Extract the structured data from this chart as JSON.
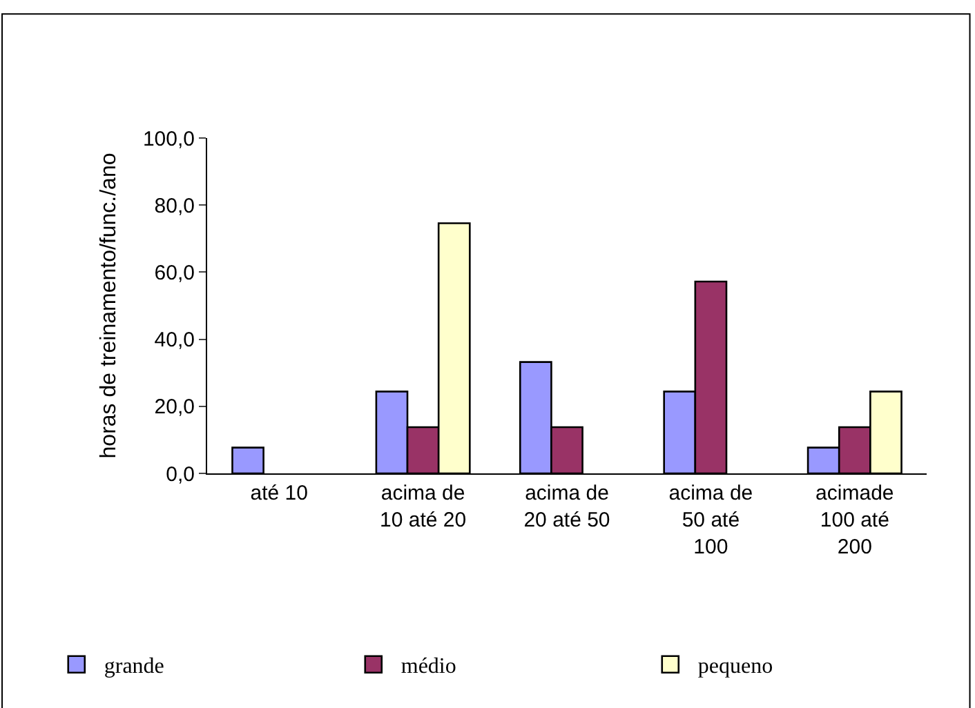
{
  "chart_data": {
    "type": "bar",
    "ylabel": "horas de treinamento/func./ano",
    "categories": [
      "até 10",
      "acima de\n10 até 20",
      "acima de\n20 até 50",
      "acima de\n50 até\n100",
      "acimade\n100 até\n200"
    ],
    "series": [
      {
        "name": "grande",
        "color": "#9999ff",
        "values": [
          7.7,
          24.4,
          33.2,
          24.4,
          7.7
        ]
      },
      {
        "name": "médio",
        "color": "#993366",
        "values": [
          null,
          13.8,
          13.8,
          57.2,
          13.8
        ]
      },
      {
        "name": "pequeno",
        "color": "#ffffcc",
        "values": [
          null,
          74.6,
          null,
          null,
          24.4
        ]
      }
    ],
    "ylim": [
      0,
      100
    ],
    "yticks": [
      {
        "value": 0,
        "label": "0,0"
      },
      {
        "value": 20,
        "label": "20,0"
      },
      {
        "value": 40,
        "label": "40,0"
      },
      {
        "value": 60,
        "label": "60,0"
      },
      {
        "value": 80,
        "label": "80,0"
      },
      {
        "value": 100,
        "label": "100,0"
      }
    ],
    "legend": "bottom"
  }
}
